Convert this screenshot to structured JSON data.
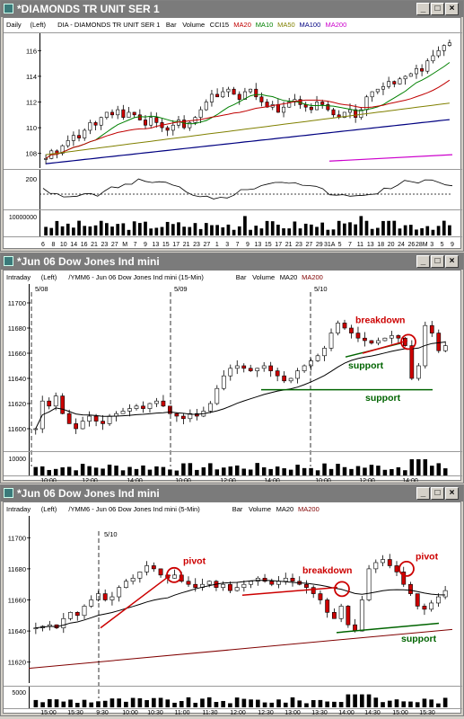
{
  "windows": [
    {
      "title": "*DIAMONDS TR UNIT SER 1",
      "header": {
        "mode": "Daily",
        "axis": "(Left)",
        "desc": "DIA - DIAMONDS TR UNIT SER 1",
        "bar": "Bar",
        "volume": "Volume",
        "cci": "CCI15",
        "studies": [
          {
            "label": "MA20",
            "color": "#c00000"
          },
          {
            "label": "MA10",
            "color": "#008000"
          },
          {
            "label": "MA50",
            "color": "#808000"
          },
          {
            "label": "MA100",
            "color": "#000080"
          },
          {
            "label": "MA200",
            "color": "#cc00cc"
          }
        ]
      },
      "price_ticks": [
        "116",
        "114",
        "112",
        "110",
        "108"
      ],
      "cci_ticks": [
        "200"
      ],
      "volume_ticks": [
        "10000000"
      ],
      "x_ticks": [
        "6",
        "8",
        "10",
        "14",
        "16",
        "21",
        "23",
        "27",
        "M",
        "7",
        "9",
        "13",
        "15",
        "17",
        "21",
        "23",
        "27",
        "1",
        "3",
        "7",
        "9",
        "13",
        "15",
        "17",
        "21",
        "23",
        "27",
        "29",
        "31A",
        "5",
        "7",
        "11",
        "13",
        "18",
        "20",
        "24",
        "26",
        "28M",
        "3",
        "5",
        "9"
      ]
    },
    {
      "title": "*Jun 06  Dow Jones Ind mini",
      "header": {
        "mode": "Intraday",
        "axis": "(Left)",
        "desc": "/YMM6 - Jun 06  Dow Jones Ind mini  (15-Min)",
        "bar": "Bar",
        "volume": "Volume",
        "studies": [
          {
            "label": "MA20",
            "color": "#000000"
          },
          {
            "label": "MA200",
            "color": "#800000"
          }
        ]
      },
      "date_markers": [
        "5/08",
        "5/09",
        "5/10"
      ],
      "price_ticks": [
        "11700",
        "11680",
        "11660",
        "11640",
        "11620",
        "11600"
      ],
      "volume_ticks": [
        "10000"
      ],
      "x_ticks": [
        "10:00",
        "12:00",
        "14:00",
        "10:00",
        "12:00",
        "14:00",
        "10:00",
        "12:00",
        "14:00"
      ],
      "annotations": [
        {
          "text": "breakdown",
          "color": "#cc0000"
        },
        {
          "text": "support",
          "color": "#006400"
        },
        {
          "text": "support",
          "color": "#006400"
        }
      ]
    },
    {
      "title": "*Jun 06  Dow Jones Ind mini",
      "header": {
        "mode": "Intraday",
        "axis": "(Left)",
        "desc": "/YMM6 - Jun 06  Dow Jones Ind mini  (5-Min)",
        "bar": "Bar",
        "volume": "Volume",
        "studies": [
          {
            "label": "MA20",
            "color": "#000000"
          },
          {
            "label": "MA200",
            "color": "#800000"
          }
        ]
      },
      "date_markers": [
        "5/10"
      ],
      "price_ticks": [
        "11700",
        "11680",
        "11660",
        "11640",
        "11620"
      ],
      "volume_ticks": [
        "5000"
      ],
      "x_ticks": [
        "15:00",
        "15:30",
        "9:30",
        "10:00",
        "10:30",
        "11:00",
        "11:30",
        "12:00",
        "12:30",
        "13:00",
        "13:30",
        "14:00",
        "14:30",
        "15:00",
        "15:30"
      ],
      "annotations": [
        {
          "text": "pivot",
          "color": "#cc0000"
        },
        {
          "text": "breakdown",
          "color": "#cc0000"
        },
        {
          "text": "pivot",
          "color": "#cc0000"
        },
        {
          "text": "support",
          "color": "#006400"
        }
      ]
    }
  ],
  "chart_data": [
    {
      "type": "bar",
      "title": "*DIAMONDS TR UNIT SER 1",
      "subtitle": "DIA - DIAMONDS TR UNIT SER 1",
      "ylim": [
        107,
        117
      ],
      "close": [
        107.6,
        108.2,
        108.0,
        108.6,
        109.0,
        109.4,
        109.2,
        109.8,
        110.4,
        110.2,
        110.8,
        111.2,
        111.0,
        111.4,
        110.8,
        111.2,
        111.0,
        110.6,
        110.2,
        110.8,
        110.4,
        110.0,
        109.8,
        110.2,
        110.6,
        110.0,
        110.4,
        110.8,
        111.4,
        112.0,
        112.6,
        112.4,
        112.8,
        113.0,
        112.6,
        112.2,
        112.8,
        113.0,
        112.4,
        112.0,
        111.6,
        111.8,
        111.2,
        111.6,
        112.0,
        112.2,
        111.8,
        111.6,
        111.4,
        112.0,
        111.8,
        111.4,
        111.0,
        110.8,
        111.2,
        111.4,
        110.8,
        111.4,
        112.4,
        112.8,
        113.0,
        113.2,
        113.6,
        113.4,
        113.8,
        114.0,
        114.2,
        114.6,
        114.4,
        115.2,
        115.6,
        116.0,
        116.4,
        116.6
      ],
      "cci_range": [
        -200,
        200
      ],
      "volume_max": 15000000
    },
    {
      "type": "bar",
      "title": "*Jun 06  Dow Jones Ind mini",
      "subtitle": "/YMM6 - Jun 06  Dow Jones Ind mini  (15-Min)",
      "ylim": [
        11590,
        11710
      ],
      "close": [
        11600,
        11622,
        11618,
        11626,
        11612,
        11604,
        11600,
        11606,
        11610,
        11606,
        11604,
        11610,
        11612,
        11614,
        11616,
        11618,
        11616,
        11620,
        11622,
        11618,
        11612,
        11610,
        11608,
        11612,
        11610,
        11614,
        11620,
        11632,
        11642,
        11648,
        11650,
        11648,
        11646,
        11648,
        11650,
        11646,
        11642,
        11638,
        11640,
        11646,
        11650,
        11654,
        11658,
        11664,
        11676,
        11684,
        11680,
        11676,
        11672,
        11670,
        11668,
        11670,
        11672,
        11674,
        11672,
        11666,
        11640,
        11650,
        11682,
        11676,
        11662,
        11666
      ],
      "support_levels": [
        11631,
        11650
      ],
      "volume_max": 16000
    },
    {
      "type": "bar",
      "title": "*Jun 06  Dow Jones Ind mini",
      "subtitle": "/YMM6 - Jun 06  Dow Jones Ind mini  (5-Min)",
      "ylim": [
        11610,
        11710
      ],
      "close": [
        11642,
        11643,
        11644,
        11642,
        11648,
        11652,
        11650,
        11656,
        11660,
        11664,
        11660,
        11662,
        11668,
        11672,
        11674,
        11678,
        11682,
        11680,
        11676,
        11674,
        11676,
        11672,
        11670,
        11668,
        11670,
        11672,
        11668,
        11670,
        11666,
        11668,
        11670,
        11672,
        11674,
        11672,
        11670,
        11672,
        11674,
        11672,
        11670,
        11668,
        11664,
        11660,
        11652,
        11648,
        11656,
        11644,
        11640,
        11660,
        11680,
        11684,
        11686,
        11682,
        11678,
        11670,
        11664,
        11656,
        11654,
        11658,
        11662,
        11666
      ],
      "support_level": 11643,
      "volume_max": 8000
    }
  ]
}
